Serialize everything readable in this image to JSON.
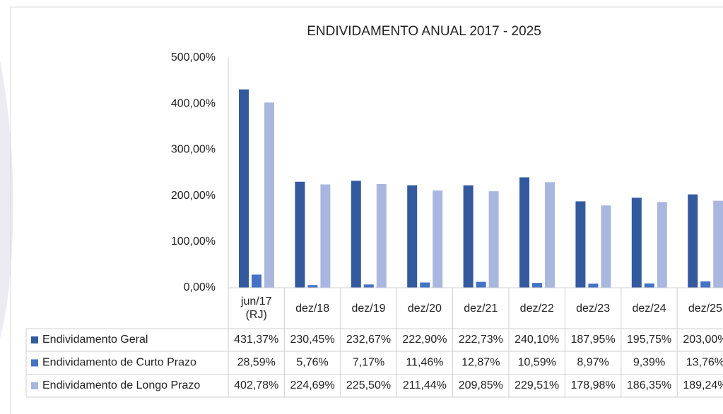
{
  "chart_data": {
    "type": "bar",
    "title": "ENDIVIDAMENTO ANUAL 2017 - 2025",
    "categories": [
      "jun/17 (RJ)",
      "dez/18",
      "dez/19",
      "dez/20",
      "dez/21",
      "dez/22",
      "dez/23",
      "dez/24",
      "dez/25"
    ],
    "series": [
      {
        "name": "Endividamento Geral",
        "color": "#335a9f",
        "values": [
          431.37,
          230.45,
          232.67,
          222.9,
          222.73,
          240.1,
          187.95,
          195.75,
          203.0
        ],
        "value_labels": [
          "431,37%",
          "230,45%",
          "232,67%",
          "222,90%",
          "222,73%",
          "240,10%",
          "187,95%",
          "195,75%",
          "203,00%"
        ]
      },
      {
        "name": "Endividamento de Curto Prazo",
        "color": "#4472c4",
        "values": [
          28.59,
          5.76,
          7.17,
          11.46,
          12.87,
          10.59,
          8.97,
          9.39,
          13.76
        ],
        "value_labels": [
          "28,59%",
          "5,76%",
          "7,17%",
          "11,46%",
          "12,87%",
          "10,59%",
          "8,97%",
          "9,39%",
          "13,76%"
        ]
      },
      {
        "name": "Endividamento de Longo Prazo",
        "color": "#a9b7df",
        "values": [
          402.78,
          224.69,
          225.5,
          211.44,
          209.85,
          229.51,
          178.98,
          186.35,
          189.24
        ],
        "value_labels": [
          "402,78%",
          "224,69%",
          "225,50%",
          "211,44%",
          "209,85%",
          "229,51%",
          "178,98%",
          "186,35%",
          "189,24%"
        ]
      }
    ],
    "ylim": [
      0,
      500
    ],
    "yticks": [
      {
        "value": 0,
        "label": "0,00%"
      },
      {
        "value": 100,
        "label": "100,00%"
      },
      {
        "value": 200,
        "label": "200,00%"
      },
      {
        "value": 300,
        "label": "300,00%"
      },
      {
        "value": 400,
        "label": "400,00%"
      },
      {
        "value": 500,
        "label": "500,00%"
      }
    ],
    "grid": false
  }
}
